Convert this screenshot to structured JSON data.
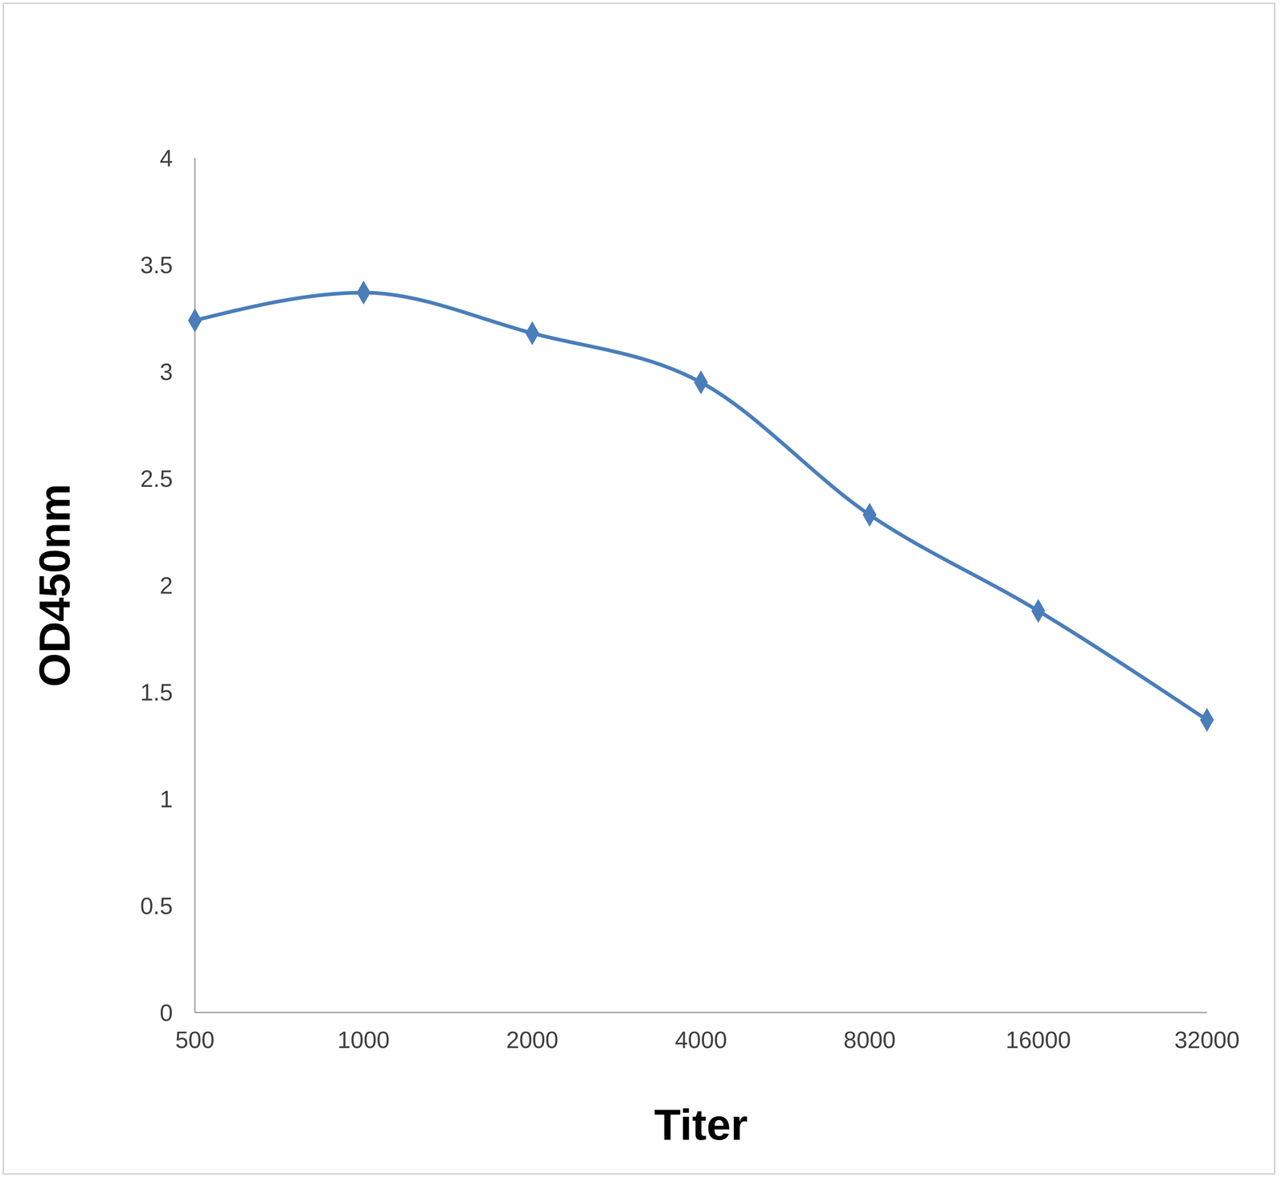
{
  "chart_data": {
    "type": "line",
    "x_label": "Titer",
    "y_label": "OD450nm",
    "categories": [
      "500",
      "1000",
      "2000",
      "4000",
      "8000",
      "16000",
      "32000"
    ],
    "values": [
      3.24,
      3.37,
      3.18,
      2.95,
      2.33,
      1.88,
      1.37
    ],
    "color": "#4a7ebb",
    "ylim": [
      0,
      4
    ],
    "yticks": [
      0,
      0.5,
      1,
      1.5,
      2,
      2.5,
      3,
      3.5,
      4
    ],
    "grid": false,
    "marker": "diamond",
    "line_style": "smooth"
  }
}
